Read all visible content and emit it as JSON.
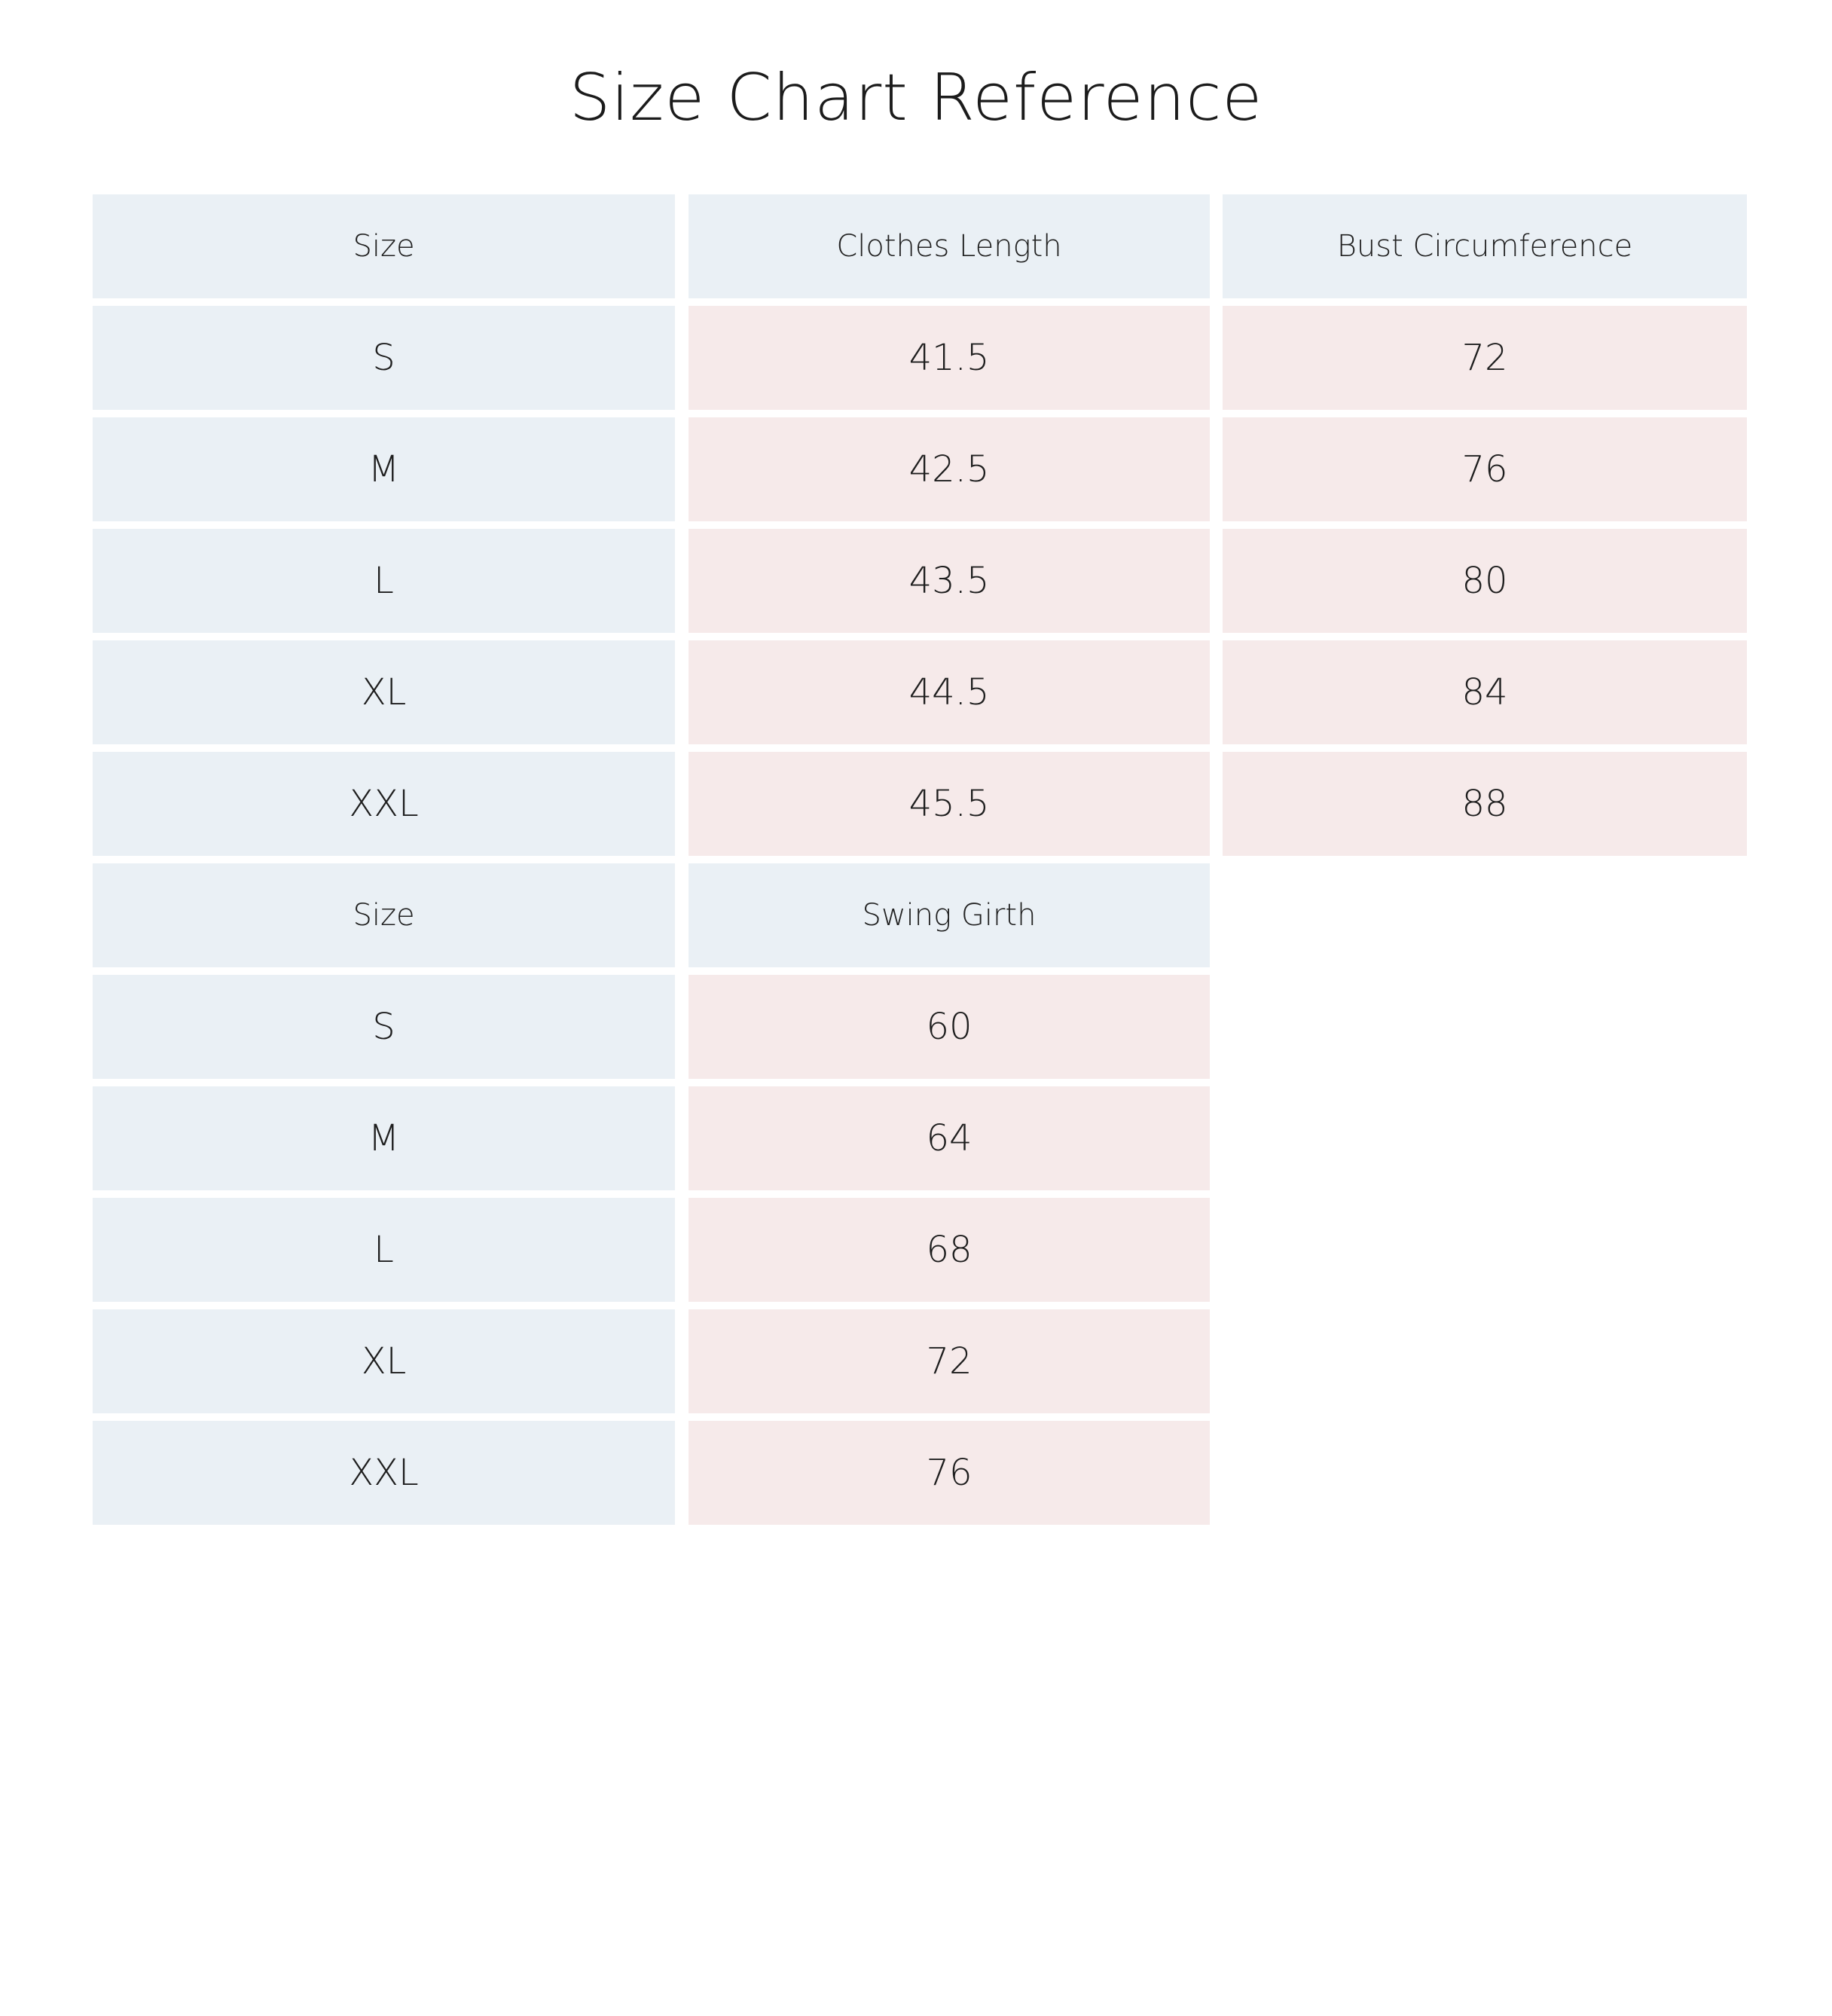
{
  "page": {
    "title": "Size Chart Reference"
  },
  "colors": {
    "header_bg": "#eaf0f5",
    "value_bg": "#f6eaea",
    "page_bg": "#ffffff"
  },
  "table1": {
    "headers": [
      "Size",
      "Clothes Length",
      "Bust Circumference"
    ],
    "rows": [
      [
        "S",
        "41.5",
        "72"
      ],
      [
        "M",
        "42.5",
        "76"
      ],
      [
        "L",
        "43.5",
        "80"
      ],
      [
        "XL",
        "44.5",
        "84"
      ],
      [
        "XXL",
        "45.5",
        "88"
      ]
    ]
  },
  "table2": {
    "headers": [
      "Size",
      "Swing Girth"
    ],
    "rows": [
      [
        "S",
        "60"
      ],
      [
        "M",
        "64"
      ],
      [
        "L",
        "68"
      ],
      [
        "XL",
        "72"
      ],
      [
        "XXL",
        "76"
      ]
    ]
  }
}
